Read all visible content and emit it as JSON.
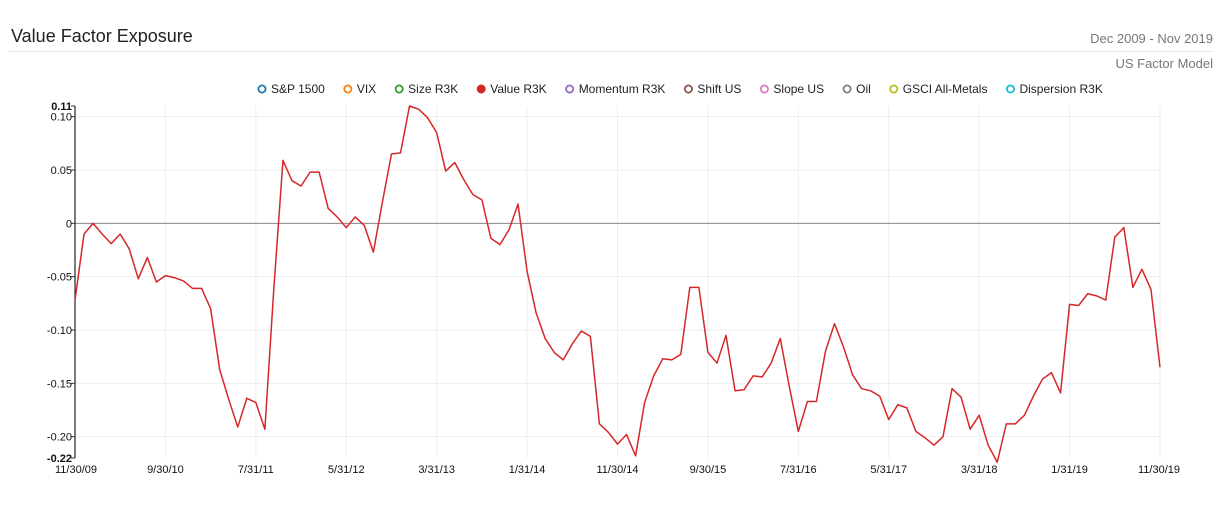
{
  "header": {
    "title": "Value Factor Exposure",
    "date_range": "Dec 2009 - Nov 2019",
    "model": "US Factor Model"
  },
  "colors": {
    "active_series": "#d62728",
    "zero_line": "#888888",
    "grid": "#eeeeee"
  },
  "chart_data": {
    "type": "line",
    "title": "Value Factor Exposure",
    "legend_position": "top-center",
    "legend": [
      {
        "name": "S&P 1500",
        "color": "#1f77b4",
        "active": false
      },
      {
        "name": "VIX",
        "color": "#ff7f0e",
        "active": false
      },
      {
        "name": "Size R3K",
        "color": "#2ca02c",
        "active": false
      },
      {
        "name": "Value R3K",
        "color": "#d62728",
        "active": true
      },
      {
        "name": "Momentum R3K",
        "color": "#9467bd",
        "active": false
      },
      {
        "name": "Shift US",
        "color": "#8c564b",
        "active": false
      },
      {
        "name": "Slope US",
        "color": "#e377c2",
        "active": false
      },
      {
        "name": "Oil",
        "color": "#7f7f7f",
        "active": false
      },
      {
        "name": "GSCI All-Metals",
        "color": "#bcbd22",
        "active": false
      },
      {
        "name": "Dispersion R3K",
        "color": "#17becf",
        "active": false
      }
    ],
    "x_ticks": [
      "11/30/09",
      "9/30/10",
      "7/31/11",
      "5/31/12",
      "3/31/13",
      "1/31/14",
      "11/30/14",
      "9/30/15",
      "7/31/16",
      "5/31/17",
      "3/31/18",
      "1/31/19",
      "11/30/19"
    ],
    "y_ticks": [
      "0.11",
      "0.10",
      "0.05",
      "0",
      "-0.05",
      "-0.10",
      "-0.15",
      "-0.20",
      "-0.22"
    ],
    "ylim": [
      -0.22,
      0.11
    ],
    "grid": true,
    "series": [
      {
        "name": "Value R3K",
        "start": "2009-11",
        "end": "2019-11",
        "values": [
          -0.072,
          -0.01,
          0.0,
          -0.01,
          -0.019,
          -0.01,
          -0.024,
          -0.052,
          -0.032,
          -0.055,
          -0.049,
          -0.051,
          -0.054,
          -0.061,
          -0.061,
          -0.08,
          -0.137,
          -0.165,
          -0.191,
          -0.164,
          -0.168,
          -0.193,
          -0.06,
          0.059,
          0.04,
          0.035,
          0.048,
          0.048,
          0.014,
          0.006,
          -0.004,
          0.006,
          -0.002,
          -0.027,
          0.02,
          0.065,
          0.066,
          0.11,
          0.107,
          0.099,
          0.085,
          0.049,
          0.057,
          0.041,
          0.027,
          0.022,
          -0.014,
          -0.02,
          -0.006,
          0.018,
          -0.045,
          -0.084,
          -0.108,
          -0.121,
          -0.128,
          -0.113,
          -0.101,
          -0.106,
          -0.188,
          -0.196,
          -0.207,
          -0.198,
          -0.218,
          -0.168,
          -0.143,
          -0.127,
          -0.128,
          -0.123,
          -0.06,
          -0.06,
          -0.121,
          -0.131,
          -0.105,
          -0.157,
          -0.156,
          -0.143,
          -0.144,
          -0.131,
          -0.108,
          -0.153,
          -0.195,
          -0.167,
          -0.167,
          -0.12,
          -0.094,
          -0.116,
          -0.142,
          -0.155,
          -0.157,
          -0.162,
          -0.184,
          -0.17,
          -0.173,
          -0.195,
          -0.201,
          -0.208,
          -0.2,
          -0.155,
          -0.163,
          -0.193,
          -0.18,
          -0.208,
          -0.224,
          -0.188,
          -0.188,
          -0.18,
          -0.162,
          -0.146,
          -0.14,
          -0.159,
          -0.076,
          -0.077,
          -0.066,
          -0.068,
          -0.072,
          -0.013,
          -0.004,
          -0.06,
          -0.043,
          -0.062,
          -0.135
        ]
      }
    ]
  }
}
